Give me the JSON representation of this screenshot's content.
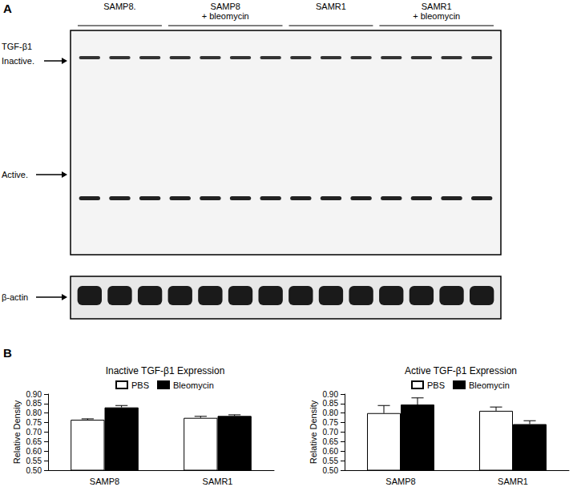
{
  "panel_labels": [
    "A",
    "B"
  ],
  "blot": {
    "groups": [
      {
        "label": [
          "SAMP8."
        ],
        "lanes": 3
      },
      {
        "label": [
          "SAMP8",
          "+ bleomycin"
        ],
        "lanes": 4
      },
      {
        "label": [
          "SAMR1"
        ],
        "lanes": 3
      },
      {
        "label": [
          "SAMR1",
          "+ bleomycin"
        ],
        "lanes": 4
      }
    ],
    "protein_label": "TGF-β1",
    "band_labels": [
      "Inactive.",
      "Active."
    ],
    "loading_control": "β-actin"
  },
  "chart_data": [
    {
      "type": "bar",
      "title": "Inactive TGF-β1 Expression",
      "categories": [
        "SAMP8",
        "SAMR1"
      ],
      "series": [
        {
          "name": "PBS",
          "color": "#ffffff",
          "values": [
            0.765,
            0.775
          ],
          "errors": [
            0.005,
            0.008
          ]
        },
        {
          "name": "Bleomycin",
          "color": "#000000",
          "values": [
            0.83,
            0.785
          ],
          "errors": [
            0.01,
            0.006
          ]
        }
      ],
      "y_label": "Relative Density",
      "ylim": [
        0.5,
        0.9
      ],
      "yticks": [
        {
          "value": 0.5,
          "label": "0.50"
        },
        {
          "value": 0.55,
          "label": "0.55"
        },
        {
          "value": 0.6,
          "label": "0.60"
        },
        {
          "value": 0.65,
          "label": "0.65"
        },
        {
          "value": 0.7,
          "label": "0.70"
        },
        {
          "value": 0.75,
          "label": "0.75"
        },
        {
          "value": 0.8,
          "label": "0.80"
        },
        {
          "value": 0.85,
          "label": "0.85"
        },
        {
          "value": 0.9,
          "label": "0.90"
        }
      ],
      "grid": false,
      "legend": "top"
    },
    {
      "type": "bar",
      "title": "Active TGF-β1 Expression",
      "categories": [
        "SAMP8",
        "SAMR1"
      ],
      "series": [
        {
          "name": "PBS",
          "color": "#ffffff",
          "values": [
            0.8,
            0.812
          ],
          "errors": [
            0.04,
            0.02
          ]
        },
        {
          "name": "Bleomycin",
          "color": "#000000",
          "values": [
            0.845,
            0.742
          ],
          "errors": [
            0.035,
            0.018
          ]
        }
      ],
      "y_label": "Relative Density",
      "ylim": [
        0.5,
        0.9
      ],
      "yticks": [
        {
          "value": 0.5,
          "label": "0.50"
        },
        {
          "value": 0.55,
          "label": "0.55"
        },
        {
          "value": 0.6,
          "label": "0.60"
        },
        {
          "value": 0.65,
          "label": "0.65"
        },
        {
          "value": 0.7,
          "label": "0.70"
        },
        {
          "value": 0.75,
          "label": "0.75"
        },
        {
          "value": 0.8,
          "label": "0.80"
        },
        {
          "value": 0.85,
          "label": "0.85"
        },
        {
          "value": 0.9,
          "label": "0.90"
        }
      ],
      "grid": false,
      "legend": "top"
    }
  ]
}
